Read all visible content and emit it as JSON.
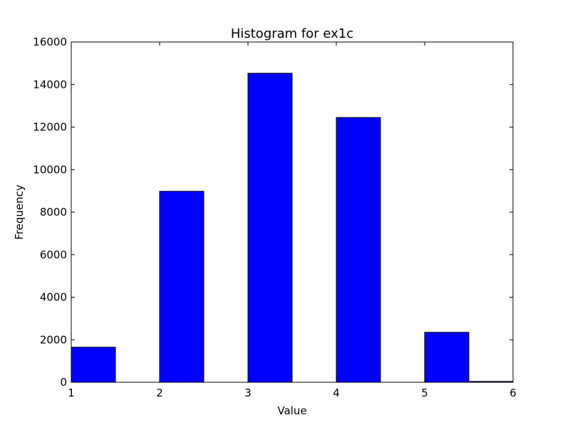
{
  "chart_data": {
    "type": "bar",
    "title": "Histogram for ex1c",
    "xlabel": "Value",
    "ylabel": "Frequency",
    "xlim": [
      1,
      6
    ],
    "ylim": [
      0,
      16000
    ],
    "xticks": [
      1,
      2,
      3,
      4,
      5,
      6
    ],
    "yticks": [
      0,
      2000,
      4000,
      6000,
      8000,
      10000,
      12000,
      14000,
      16000
    ],
    "bin_edges": [
      1.0,
      1.5,
      2.0,
      2.5,
      3.0,
      3.5,
      4.0,
      4.5,
      5.0,
      5.5,
      6.0
    ],
    "values": [
      1650,
      0,
      8980,
      0,
      14530,
      0,
      12450,
      0,
      2350,
      40
    ],
    "bar_color": "#0000ff",
    "edge_color": "#000000",
    "grid": false
  }
}
